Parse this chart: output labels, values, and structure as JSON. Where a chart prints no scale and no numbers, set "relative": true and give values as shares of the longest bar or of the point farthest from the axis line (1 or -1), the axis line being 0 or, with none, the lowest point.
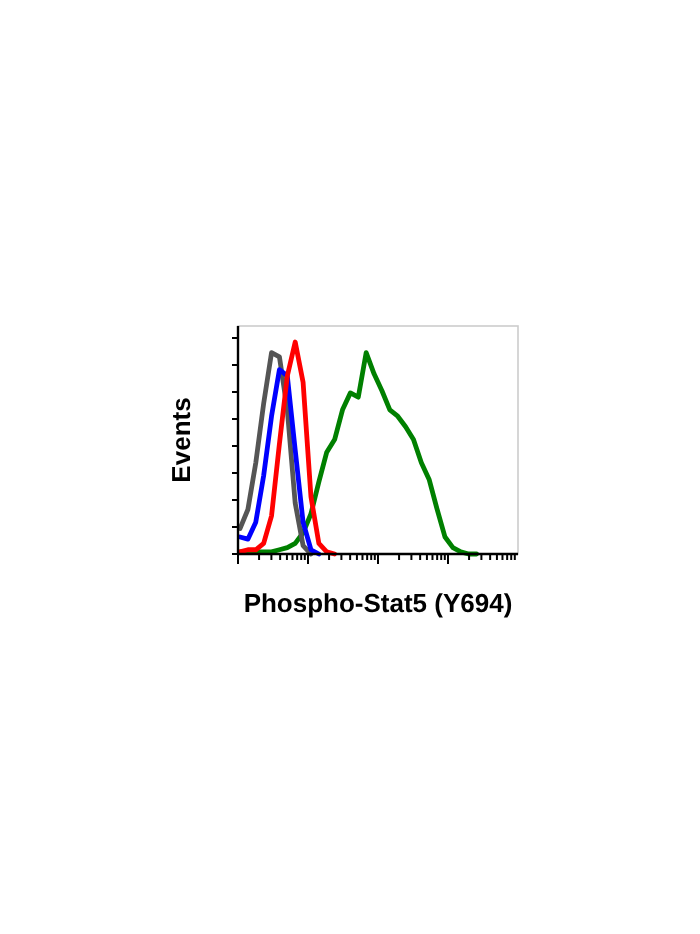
{
  "chart_data": {
    "type": "line",
    "relative": true,
    "xlabel": "Phospho-Stat5 (Y694)",
    "ylabel": "Events",
    "legend": false,
    "marker": "none",
    "line_style": "solid",
    "categories": [
      null,
      null,
      null,
      null,
      null,
      null,
      null,
      null,
      null,
      null,
      null,
      null,
      null,
      null,
      null,
      null,
      null,
      null,
      null,
      null,
      null,
      null,
      null,
      null,
      null,
      null,
      null,
      null,
      null,
      null,
      null,
      null,
      null,
      null,
      null,
      null
    ],
    "series": [
      {
        "color": "#008000",
        "values": [
          0.01,
          0.01,
          0.01,
          0.01,
          0.01,
          0.02,
          0.03,
          0.05,
          0.1,
          0.19,
          0.34,
          0.48,
          0.54,
          0.68,
          0.76,
          0.74,
          0.95,
          0.85,
          0.77,
          0.68,
          0.65,
          0.6,
          0.54,
          0.43,
          0.35,
          0.21,
          0.08,
          0.03,
          0.01,
          0,
          0,
          null,
          null,
          null,
          null,
          null
        ]
      },
      {
        "color": "#555555",
        "values": [
          0.12,
          0.21,
          0.43,
          0.71,
          0.95,
          0.93,
          0.68,
          0.24,
          0.04,
          0,
          null,
          null,
          null,
          null,
          null,
          null,
          null,
          null,
          null,
          null,
          null,
          null,
          null,
          null,
          null,
          null,
          null,
          null,
          null,
          null,
          null,
          null,
          null,
          null,
          null,
          null
        ]
      },
      {
        "color": "#0000ff",
        "values": [
          0.08,
          0.07,
          0.15,
          0.37,
          0.65,
          0.87,
          0.84,
          0.49,
          0.15,
          0.02,
          0,
          null,
          null,
          null,
          null,
          null,
          null,
          null,
          null,
          null,
          null,
          null,
          null,
          null,
          null,
          null,
          null,
          null,
          null,
          null,
          null,
          null,
          null,
          null,
          null,
          null
        ]
      },
      {
        "color": "#ff0000",
        "values": [
          0.01,
          0.02,
          0.02,
          0.05,
          0.18,
          0.52,
          0.84,
          1,
          0.81,
          0.27,
          0.05,
          0.01,
          0,
          null,
          null,
          null,
          null,
          null,
          null,
          null,
          null,
          null,
          null,
          null,
          null,
          null,
          null,
          null,
          null,
          null,
          null,
          null,
          null,
          null,
          null,
          null
        ]
      }
    ]
  }
}
